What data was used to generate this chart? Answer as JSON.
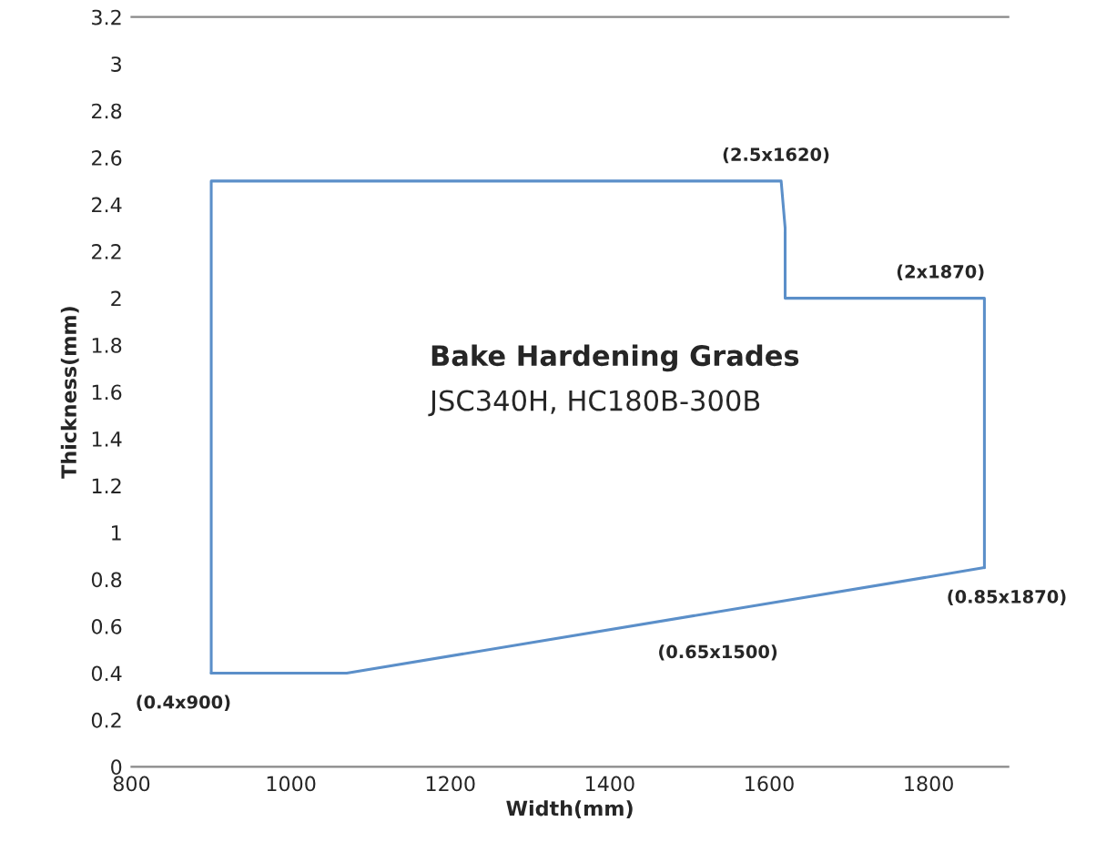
{
  "chart_data": {
    "type": "line",
    "title": "Bake Hardening Grades",
    "subtitle": "JSC340H, HC180B-300B",
    "xlabel": "Width(mm)",
    "ylabel": "Thickness(mm)",
    "series": [
      {
        "color": "#5b8fc9",
        "x": [
          900,
          900,
          1615,
          1620,
          1620,
          1870,
          1870
        ],
        "values": [
          0.4,
          2.5,
          2.5,
          2.3,
          2.0,
          2.0,
          0.85
        ]
      },
      {
        "color": "#5b8fc9",
        "x": [
          900,
          1070,
          1870
        ],
        "values": [
          0.4,
          0.4,
          0.85
        ]
      }
    ],
    "xlim": [
      800,
      1900
    ],
    "xticks": [
      800,
      1000,
      1200,
      1400,
      1600,
      1800
    ],
    "ylim": [
      0,
      3.2
    ],
    "yticks": [
      0,
      0.2,
      0.4,
      0.6,
      0.8,
      1,
      1.2,
      1.4,
      1.6,
      1.8,
      2,
      2.2,
      2.4,
      2.6,
      2.8,
      3,
      3.2
    ],
    "annotations": [
      {
        "text": "(0.4x900)",
        "x": 900,
        "y": 0.4
      },
      {
        "text": "(2.5x1620)",
        "x": 1620,
        "y": 2.5
      },
      {
        "text": "(2x1870)",
        "x": 1870,
        "y": 2
      },
      {
        "text": "(0.85x1870)",
        "x": 1870,
        "y": 0.85
      },
      "(0.65x1500)"
    ],
    "grid": false,
    "legend": false,
    "marker": "none",
    "line_style": "solid"
  }
}
